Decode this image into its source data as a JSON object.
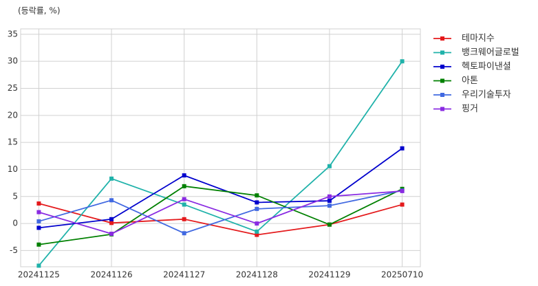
{
  "chart_data": {
    "type": "line",
    "y_label": "(등락률, %)",
    "categories": [
      "20241125",
      "20241126",
      "20241127",
      "20241128",
      "20241129",
      "20250710"
    ],
    "series": [
      {
        "name": "테마지수",
        "color": "#e41a1c",
        "values": [
          3.7,
          0.1,
          0.8,
          -2.1,
          -0.2,
          3.5
        ]
      },
      {
        "name": "뱅크웨어글로벌",
        "color": "#20b2aa",
        "values": [
          -7.8,
          8.3,
          3.5,
          -1.5,
          10.6,
          30.0
        ]
      },
      {
        "name": "헥토파이낸셜",
        "color": "#0000cd",
        "values": [
          -0.8,
          0.8,
          8.9,
          3.9,
          4.2,
          13.9
        ]
      },
      {
        "name": "아톤",
        "color": "#008000",
        "values": [
          -3.9,
          -2.0,
          6.9,
          5.2,
          -0.2,
          6.4
        ]
      },
      {
        "name": "우리기술투자",
        "color": "#4169e1",
        "values": [
          0.4,
          4.3,
          -1.8,
          2.7,
          3.3,
          6.1
        ]
      },
      {
        "name": "핑거",
        "color": "#8a2be2",
        "values": [
          2.1,
          -1.9,
          4.5,
          0.0,
          5.0,
          6.0
        ]
      }
    ],
    "ylim": [
      -8,
      36
    ],
    "yticks": [
      -5,
      0,
      5,
      10,
      15,
      20,
      25,
      30,
      35
    ],
    "grid": true,
    "legend": "outside-right"
  }
}
